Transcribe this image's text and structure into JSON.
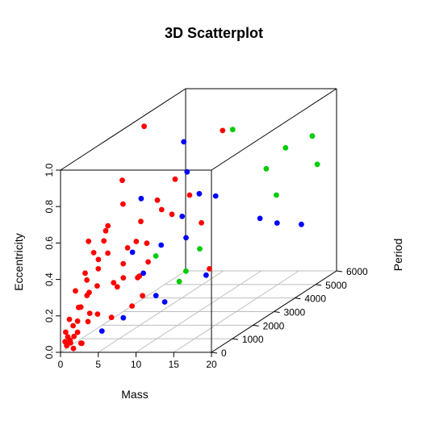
{
  "chart_data": {
    "type": "scatter",
    "projection": "3d",
    "title": "3D Scatterplot",
    "xlabel": "Mass",
    "ylabel": "Period",
    "zlabel": "Eccentricity",
    "xlim": [
      0,
      20
    ],
    "ylim": [
      0,
      6000
    ],
    "zlim": [
      0,
      1
    ],
    "x_ticks": [
      "0",
      "5",
      "10",
      "15",
      "20"
    ],
    "y_ticks": [
      "0",
      "1000",
      "2000",
      "3000",
      "4000",
      "5000",
      "6000"
    ],
    "z_ticks": [
      "0.0",
      "0.2",
      "0.4",
      "0.6",
      "0.8",
      "1.0"
    ],
    "grid": true,
    "box": true,
    "legend": "none",
    "colors": {
      "red": "#ff0000",
      "blue": "#0000ff",
      "green": "#00cc00",
      "axis": "#000000",
      "grid": "#bebebe"
    },
    "series": [
      {
        "color": "#ff0000",
        "points": [
          {
            "x": 0.3,
            "y": 110,
            "z": 0.05
          },
          {
            "x": 0.6,
            "y": 180,
            "z": 0.04
          },
          {
            "x": 1.0,
            "y": 90,
            "z": 0.06
          },
          {
            "x": 0.2,
            "y": 220,
            "z": 0.02
          },
          {
            "x": 0.5,
            "y": 300,
            "z": 0.03
          },
          {
            "x": 1.3,
            "y": 150,
            "z": 0.01
          },
          {
            "x": 0.8,
            "y": 60,
            "z": 0.08
          },
          {
            "x": 1.6,
            "y": 400,
            "z": 0.02
          },
          {
            "x": 0.4,
            "y": 500,
            "z": 0.05
          },
          {
            "x": 2.1,
            "y": 260,
            "z": 0.03
          },
          {
            "x": 0.3,
            "y": 140,
            "z": 0.1
          },
          {
            "x": 0.7,
            "y": 350,
            "z": 0.12
          },
          {
            "x": 1.1,
            "y": 420,
            "z": 0.14
          },
          {
            "x": 0.4,
            "y": 280,
            "z": 0.16
          },
          {
            "x": 1.9,
            "y": 130,
            "z": 0.1
          },
          {
            "x": 2.2,
            "y": 520,
            "z": 0.13
          },
          {
            "x": 0.9,
            "y": 650,
            "z": 0.2
          },
          {
            "x": 1.6,
            "y": 380,
            "z": 0.22
          },
          {
            "x": 0.3,
            "y": 760,
            "z": 0.19
          },
          {
            "x": 2.6,
            "y": 460,
            "z": 0.18
          },
          {
            "x": 1.2,
            "y": 830,
            "z": 0.25
          },
          {
            "x": 0.6,
            "y": 500,
            "z": 0.3
          },
          {
            "x": 2.0,
            "y": 650,
            "z": 0.28
          },
          {
            "x": 1.0,
            "y": 900,
            "z": 0.33
          },
          {
            "x": 0.5,
            "y": 1000,
            "z": 0.36
          },
          {
            "x": 2.1,
            "y": 1050,
            "z": 0.38
          },
          {
            "x": 1.7,
            "y": 1200,
            "z": 0.42
          },
          {
            "x": 0.8,
            "y": 1300,
            "z": 0.45
          },
          {
            "x": 2.4,
            "y": 1400,
            "z": 0.44
          },
          {
            "x": 1.6,
            "y": 1500,
            "z": 0.5
          },
          {
            "x": 0.4,
            "y": 1200,
            "z": 0.52
          },
          {
            "x": 1.3,
            "y": 1800,
            "z": 0.56
          },
          {
            "x": 3.5,
            "y": 900,
            "z": 0.6
          },
          {
            "x": 2.2,
            "y": 2200,
            "z": 0.65
          },
          {
            "x": 1.0,
            "y": 2600,
            "z": 0.75
          },
          {
            "x": 3.2,
            "y": 600,
            "z": 0.32
          },
          {
            "x": 4.0,
            "y": 1100,
            "z": 0.3
          },
          {
            "x": 2.8,
            "y": 2000,
            "z": 0.26
          },
          {
            "x": 1.4,
            "y": 2500,
            "z": 0.3
          },
          {
            "x": 3.1,
            "y": 1600,
            "z": 0.24
          },
          {
            "x": 0.6,
            "y": 3000,
            "z": 0.35
          },
          {
            "x": 2.3,
            "y": 2800,
            "z": 0.4
          },
          {
            "x": 0.3,
            "y": 3900,
            "z": 0.95
          },
          {
            "x": 1.8,
            "y": 3200,
            "z": 0.48
          },
          {
            "x": 3.6,
            "y": 2900,
            "z": 0.28
          },
          {
            "x": 0.5,
            "y": 3600,
            "z": 0.15
          },
          {
            "x": 2.9,
            "y": 3800,
            "z": 0.5
          },
          {
            "x": 4.5,
            "y": 1800,
            "z": 0.12
          },
          {
            "x": 1.2,
            "y": 3500,
            "z": 0.05
          },
          {
            "x": 3.8,
            "y": 400,
            "z": 0.18
          },
          {
            "x": 2.6,
            "y": 1500,
            "z": 0.08
          },
          {
            "x": 6.0,
            "y": 5600,
            "z": 0.8
          },
          {
            "x": 9.0,
            "y": 3500,
            "z": 0.45
          },
          {
            "x": 12.0,
            "y": 2800,
            "z": 0.25
          },
          {
            "x": 8.0,
            "y": 800,
            "z": 0.35
          },
          {
            "x": 5.5,
            "y": 4200,
            "z": 0.55
          },
          {
            "x": 4.8,
            "y": 2400,
            "z": 0.42
          },
          {
            "x": 0.4,
            "y": 4500,
            "z": 0.5
          },
          {
            "x": 1.5,
            "y": 4800,
            "z": 0.4
          },
          {
            "x": 2.2,
            "y": 4700,
            "z": 0.6
          }
        ]
      },
      {
        "color": "#0000ff",
        "points": [
          {
            "x": 3.0,
            "y": 900,
            "z": 0.05
          },
          {
            "x": 5.0,
            "y": 1200,
            "z": 0.1
          },
          {
            "x": 8.0,
            "y": 2100,
            "z": 0.12
          },
          {
            "x": 11.0,
            "y": 3000,
            "z": 0.2
          },
          {
            "x": 6.0,
            "y": 1800,
            "z": 0.3
          },
          {
            "x": 4.5,
            "y": 3200,
            "z": 0.35
          },
          {
            "x": 6.5,
            "y": 4300,
            "z": 0.55
          },
          {
            "x": 9.5,
            "y": 4000,
            "z": 0.56
          },
          {
            "x": 14.0,
            "y": 4500,
            "z": 0.4
          },
          {
            "x": 3.5,
            "y": 2600,
            "z": 0.65
          },
          {
            "x": 6.0,
            "y": 3900,
            "z": 0.7
          },
          {
            "x": 5.0,
            "y": 4100,
            "z": 0.85
          },
          {
            "x": 7.0,
            "y": 3300,
            "z": 0.5
          },
          {
            "x": 10.0,
            "y": 2400,
            "z": 0.45
          },
          {
            "x": 13.5,
            "y": 5500,
            "z": 0.3
          },
          {
            "x": 17.0,
            "y": 5400,
            "z": 0.3
          },
          {
            "x": 8.5,
            "y": 1500,
            "z": 0.2
          },
          {
            "x": 4.0,
            "y": 2000,
            "z": 0.4
          }
        ]
      },
      {
        "color": "#00cc00",
        "points": [
          {
            "x": 6.0,
            "y": 2400,
            "z": 0.35
          },
          {
            "x": 9.0,
            "y": 5000,
            "z": 0.85
          },
          {
            "x": 14.0,
            "y": 4800,
            "z": 0.65
          },
          {
            "x": 8.5,
            "y": 3600,
            "z": 0.3
          },
          {
            "x": 16.0,
            "y": 5000,
            "z": 0.75
          },
          {
            "x": 19.0,
            "y": 5200,
            "z": 0.8
          },
          {
            "x": 18.0,
            "y": 5800,
            "z": 0.6
          },
          {
            "x": 7.5,
            "y": 3300,
            "z": 0.2
          },
          {
            "x": 17.0,
            "y": 4200,
            "z": 0.55
          },
          {
            "x": 8.0,
            "y": 2800,
            "z": 0.18
          }
        ]
      }
    ]
  }
}
